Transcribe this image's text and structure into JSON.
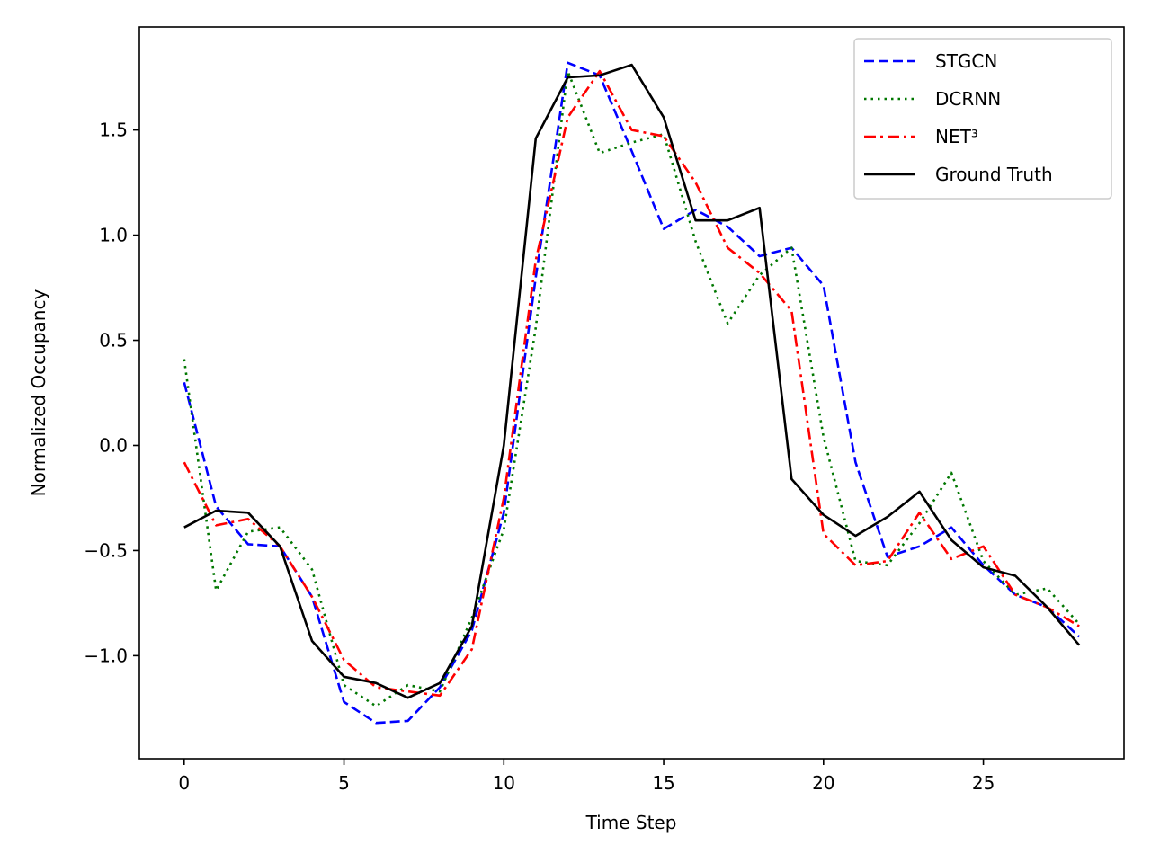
{
  "chart_data": {
    "type": "line",
    "title": "",
    "xlabel": "Time Step",
    "ylabel": "Normalized Occupancy",
    "xlim": [
      -1.4,
      29.4
    ],
    "ylim": [
      -1.49,
      1.99
    ],
    "xticks": [
      0,
      5,
      10,
      15,
      20,
      25
    ],
    "xtick_labels": [
      "0",
      "5",
      "10",
      "15",
      "20",
      "25"
    ],
    "yticks": [
      -1.0,
      -0.5,
      0.0,
      0.5,
      1.0,
      1.5
    ],
    "ytick_labels": [
      "−1.0",
      "−0.5",
      "0.0",
      "0.5",
      "1.0",
      "1.5"
    ],
    "legend_position": "upper right",
    "x": [
      0,
      1,
      2,
      3,
      4,
      5,
      6,
      7,
      8,
      9,
      10,
      11,
      12,
      13,
      14,
      15,
      16,
      17,
      18,
      19,
      20,
      21,
      22,
      23,
      24,
      25,
      26,
      27,
      28
    ],
    "series": [
      {
        "name": "STGCN",
        "color": "#0000ff",
        "style": "dashed",
        "values": [
          0.3,
          -0.29,
          -0.47,
          -0.48,
          -0.72,
          -1.22,
          -1.32,
          -1.31,
          -1.15,
          -0.88,
          -0.32,
          0.8,
          1.82,
          1.76,
          1.4,
          1.03,
          1.12,
          1.04,
          0.9,
          0.94,
          0.76,
          -0.08,
          -0.53,
          -0.48,
          -0.39,
          -0.57,
          -0.71,
          -0.77,
          -0.91
        ]
      },
      {
        "name": "DCRNN",
        "color": "#007700",
        "style": "dotted",
        "values": [
          0.41,
          -0.69,
          -0.41,
          -0.39,
          -0.59,
          -1.14,
          -1.24,
          -1.14,
          -1.17,
          -0.82,
          -0.4,
          0.56,
          1.78,
          1.39,
          1.44,
          1.48,
          0.97,
          0.58,
          0.81,
          0.94,
          0.04,
          -0.55,
          -0.57,
          -0.37,
          -0.13,
          -0.55,
          -0.71,
          -0.68,
          -0.85
        ]
      },
      {
        "name": "NET³",
        "color": "#ff0000",
        "style": "dashdot",
        "values": [
          -0.08,
          -0.38,
          -0.35,
          -0.48,
          -0.72,
          -1.02,
          -1.15,
          -1.17,
          -1.19,
          -0.97,
          -0.25,
          0.88,
          1.56,
          1.78,
          1.5,
          1.47,
          1.25,
          0.94,
          0.82,
          0.64,
          -0.42,
          -0.57,
          -0.55,
          -0.32,
          -0.54,
          -0.48,
          -0.71,
          -0.77,
          -0.86
        ]
      },
      {
        "name": "Ground Truth",
        "color": "#000000",
        "style": "solid",
        "values": [
          -0.39,
          -0.31,
          -0.32,
          -0.48,
          -0.93,
          -1.1,
          -1.13,
          -1.2,
          -1.13,
          -0.86,
          0.0,
          1.46,
          1.75,
          1.76,
          1.81,
          1.56,
          1.07,
          1.07,
          1.13,
          -0.16,
          -0.33,
          -0.43,
          -0.34,
          -0.22,
          -0.45,
          -0.58,
          -0.62,
          -0.77,
          -0.95
        ]
      }
    ]
  }
}
